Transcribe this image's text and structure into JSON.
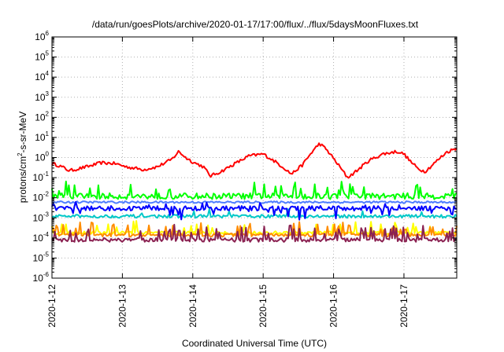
{
  "chart_data": {
    "type": "line",
    "title": "/data/run/goesPlots/archive/2020-01-17/17:00/flux/../flux/5daysMoonFluxes.txt",
    "xlabel": "Coordinated Universal Time (UTC)",
    "ylabel": "protons/cm2-s-sr-MeV",
    "ylabel_parts": [
      "protons/cm",
      "2",
      "-s-sr-MeV"
    ],
    "yscale": "log",
    "ylim_exp": [
      -6,
      6
    ],
    "ytick_base": "10",
    "ytick_exponents": [
      "-6",
      "-5",
      "-4",
      "-3",
      "-2",
      "-1",
      "0",
      "1",
      "2",
      "3",
      "4",
      "5",
      "6"
    ],
    "x_start": "2020-01-12",
    "x_range_days": [
      0,
      5.75
    ],
    "xtick_days": [
      0,
      1,
      2,
      3,
      4,
      5
    ],
    "xtick_labels": [
      "2020-1-12",
      "2020-1-13",
      "2020-1-14",
      "2020-1-15",
      "2020-1-16",
      "2020-1-17"
    ],
    "grid": true,
    "legend": "none",
    "series": [
      {
        "color": "#ff0000",
        "base": 0.5,
        "anchors": [
          [
            0,
            0.5
          ],
          [
            0.1,
            0.4
          ],
          [
            0.25,
            0.22
          ],
          [
            0.5,
            0.35
          ],
          [
            0.7,
            0.55
          ],
          [
            0.9,
            0.5
          ],
          [
            1.05,
            0.35
          ],
          [
            1.3,
            0.25
          ],
          [
            1.5,
            0.35
          ],
          [
            1.7,
            0.8
          ],
          [
            1.8,
            2.0
          ],
          [
            1.9,
            1.0
          ],
          [
            2.0,
            0.6
          ],
          [
            2.15,
            0.35
          ],
          [
            2.25,
            0.12
          ],
          [
            2.4,
            0.2
          ],
          [
            2.6,
            0.5
          ],
          [
            2.8,
            1.2
          ],
          [
            3.0,
            1.5
          ],
          [
            3.15,
            0.7
          ],
          [
            3.3,
            0.3
          ],
          [
            3.4,
            0.15
          ],
          [
            3.55,
            0.4
          ],
          [
            3.7,
            2.0
          ],
          [
            3.8,
            5.0
          ],
          [
            3.9,
            2.5
          ],
          [
            4.0,
            0.9
          ],
          [
            4.1,
            0.3
          ],
          [
            4.2,
            0.1
          ],
          [
            4.35,
            0.25
          ],
          [
            4.5,
            0.7
          ],
          [
            4.7,
            1.5
          ],
          [
            4.9,
            2.0
          ],
          [
            5.0,
            1.5
          ],
          [
            5.1,
            0.6
          ],
          [
            5.2,
            0.28
          ],
          [
            5.3,
            0.2
          ],
          [
            5.45,
            0.6
          ],
          [
            5.6,
            1.8
          ],
          [
            5.75,
            3.0
          ]
        ],
        "noise": 0.08,
        "spikes": 0
      },
      {
        "color": "#00ff00",
        "base": 0.012,
        "noise": 0.15,
        "spikes": 0.12,
        "spike_amp": 0.7,
        "dip_amp": 0.0
      },
      {
        "color": "#00c8c8",
        "base": 0.0012,
        "noise": 0.08,
        "spikes": 0.03,
        "spike_amp": 0.35,
        "dip_amp": 0.0
      },
      {
        "color": "#4f7dff",
        "base": 0.006,
        "noise": 0.05,
        "spikes": 0.0,
        "spike_amp": 0.0,
        "dip_amp": 0.0
      },
      {
        "color": "#0000ff",
        "base": 0.003,
        "noise": 0.12,
        "spikes": 0.1,
        "spike_amp": 0.25,
        "dip_amp": 0.5
      },
      {
        "color": "#ffff00",
        "base": 0.00018,
        "noise": 0.08,
        "spikes": 0.12,
        "spike_amp": 0.55,
        "dip_amp": 0.0
      },
      {
        "color": "#ff8c00",
        "base": 0.00014,
        "noise": 0.08,
        "spikes": 0.12,
        "spike_amp": 0.6,
        "dip_amp": 0.0
      },
      {
        "color": "#8b2252",
        "base": 8e-05,
        "noise": 0.1,
        "spikes": 0.12,
        "spike_amp": 0.7,
        "dip_amp": 0.0
      }
    ]
  }
}
